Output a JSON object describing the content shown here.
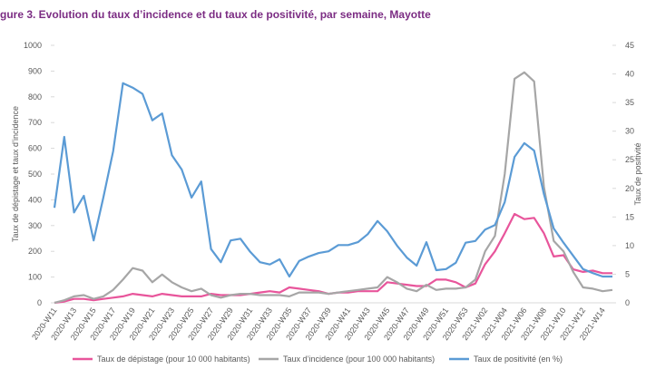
{
  "chart_data": {
    "type": "line",
    "title": "gure 3. Evolution du taux d’incidence et du taux de positivité, par semaine, Mayotte",
    "y_label": "Taux de dépistage et taux d’incidence",
    "y2_label": "Taux de positivité",
    "categories": [
      "2020-W11",
      null,
      "2020-W13",
      null,
      "2020-W15",
      null,
      "2020-W17",
      null,
      "2020-W19",
      null,
      "2020-W21",
      null,
      "2020-W23",
      null,
      "2020-W25",
      null,
      "2020-W27",
      null,
      "2020-W29",
      null,
      "2020-W31",
      null,
      "2020-W33",
      null,
      "2020-W35",
      null,
      "2020-W37",
      null,
      "2020-W39",
      null,
      "2020-W41",
      null,
      "2020-W43",
      null,
      "2020-W45",
      null,
      "2020-W47",
      null,
      "2020-W49",
      null,
      "2020-W51",
      null,
      "2020-W53",
      null,
      "2021-W02",
      null,
      "2021-W04",
      null,
      "2021-W06",
      null,
      "2021-W08",
      null,
      "2021-W10",
      null,
      "2021-W12",
      null,
      "2021-W14",
      null
    ],
    "ylim": [
      0,
      1000
    ],
    "yticks": [
      0,
      100,
      200,
      300,
      400,
      500,
      600,
      700,
      800,
      900,
      1000
    ],
    "y2lim": [
      0,
      45
    ],
    "y2ticks": [
      0,
      5,
      10,
      15,
      20,
      25,
      30,
      35,
      40,
      45
    ],
    "legend": "bottom",
    "series": [
      {
        "name": "Taux de dépistage (pour 10 000 habitants)",
        "color": "#e8559b",
        "values": [
          0,
          5,
          15,
          15,
          10,
          15,
          20,
          25,
          35,
          30,
          25,
          35,
          30,
          25,
          25,
          25,
          35,
          30,
          30,
          30,
          35,
          40,
          45,
          40,
          60,
          55,
          50,
          45,
          35,
          40,
          40,
          45,
          45,
          45,
          80,
          75,
          70,
          65,
          65,
          90,
          90,
          80,
          60,
          75,
          150,
          200,
          270,
          345,
          325,
          330,
          270,
          180,
          185,
          130,
          120,
          125,
          115,
          115
        ]
      },
      {
        "name": "Taux d’incidence (pour 100 000 habitants)",
        "color": "#a6a6a6",
        "values": [
          0,
          10,
          25,
          30,
          15,
          25,
          50,
          90,
          135,
          125,
          80,
          110,
          80,
          60,
          45,
          55,
          30,
          20,
          30,
          35,
          35,
          30,
          30,
          30,
          25,
          40,
          40,
          40,
          35,
          40,
          45,
          50,
          55,
          60,
          100,
          80,
          55,
          45,
          70,
          50,
          55,
          55,
          60,
          90,
          200,
          260,
          500,
          870,
          895,
          860,
          450,
          240,
          200,
          120,
          60,
          55,
          45,
          50
        ]
      },
      {
        "name": "Taux de positivité (en %)",
        "color": "#5b9bd5",
        "axis": "y2",
        "values": [
          16.6,
          29,
          15.8,
          18.7,
          10.9,
          18.4,
          26.5,
          38.4,
          37.6,
          36.5,
          31.9,
          33.1,
          25.8,
          23.3,
          18.4,
          21.2,
          9.4,
          7.1,
          10.9,
          11.2,
          8.9,
          7.1,
          6.7,
          7.6,
          4.6,
          7.3,
          8.1,
          8.7,
          9.0,
          10.1,
          10.1,
          10.6,
          12.0,
          14.3,
          12.5,
          10.0,
          7.9,
          6.5,
          10.6,
          5.7,
          5.9,
          7.0,
          10.5,
          10.8,
          12.8,
          13.6,
          17.6,
          25.5,
          27.9,
          26.6,
          19.0,
          13.0,
          10.5,
          8.2,
          5.9,
          5.2,
          4.6,
          4.6
        ]
      }
    ]
  }
}
